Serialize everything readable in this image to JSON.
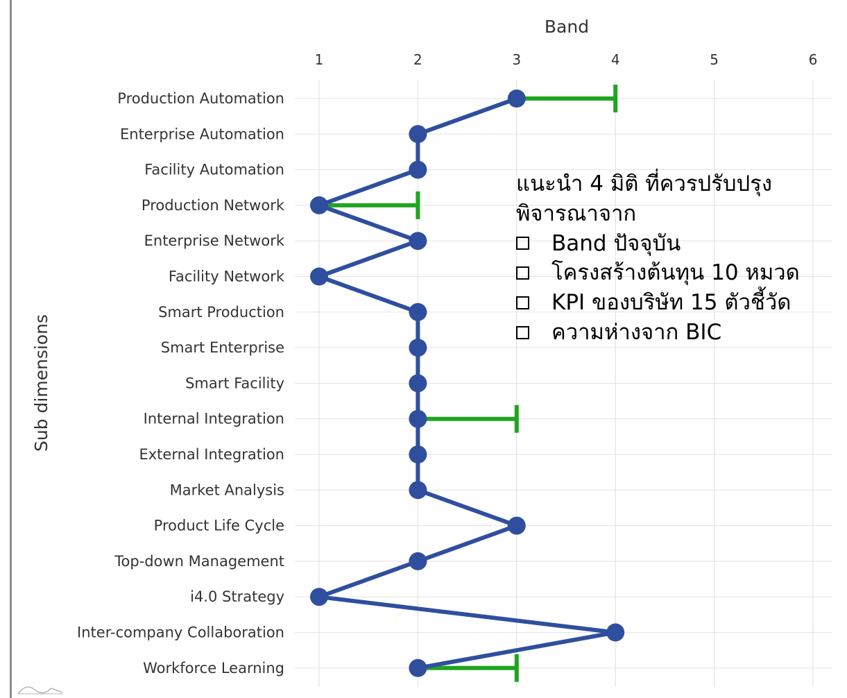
{
  "chart_data": {
    "type": "line",
    "xlabel": "Band",
    "ylabel": "Sub dimensions",
    "xlim": [
      1,
      6
    ],
    "x_ticks": [
      "1",
      "2",
      "3",
      "4",
      "5",
      "6"
    ],
    "categories": [
      "Production Automation",
      "Enterprise Automation",
      "Facility Automation",
      "Production Network",
      "Enterprise Network",
      "Facility Network",
      "Smart Production",
      "Smart Enterprise",
      "Smart Facility",
      "Internal Integration",
      "External Integration",
      "Market Analysis",
      "Product Life Cycle",
      "Top-down Management",
      "i4.0 Strategy",
      "Inter-company Collaboration",
      "Workforce Learning"
    ],
    "values": [
      3,
      2,
      2,
      1,
      2,
      1,
      2,
      2,
      2,
      2,
      2,
      2,
      3,
      2,
      1,
      4,
      2
    ],
    "targets": [
      {
        "category": "Production Automation",
        "from": 3,
        "to": 4
      },
      {
        "category": "Production Network",
        "from": 1,
        "to": 2
      },
      {
        "category": "Internal Integration",
        "from": 2,
        "to": 3
      },
      {
        "category": "Workforce Learning",
        "from": 2,
        "to": 3
      }
    ],
    "grid": true,
    "colors": {
      "line": "#2f4f9e",
      "target": "#1fa51f",
      "grid": "#e3e3e3"
    }
  },
  "note": {
    "title_line1": "แนะนำ 4 มิติ ที่ควรปรับปรุง",
    "title_line2": "พิจารณาจาก",
    "items": [
      "Band ปัจจุบัน",
      "โครงสร้างต้นทุน 10 หมวด",
      "KPI ของบริษัท 15 ตัวชี้วัด",
      "ความห่างจาก BIC"
    ]
  }
}
